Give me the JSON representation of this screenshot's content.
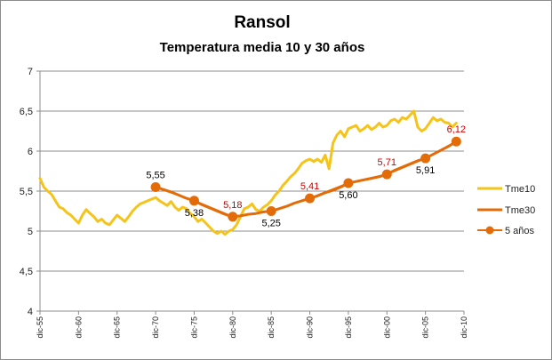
{
  "chart_data": {
    "type": "line",
    "title": "Ransol",
    "subtitle": "Temperatura media  10 y 30 años",
    "ylim": [
      4,
      7
    ],
    "yticks": [
      "4",
      "4,5",
      "5",
      "5,5",
      "6",
      "6,5",
      "7"
    ],
    "ytick_values": [
      4,
      4.5,
      5,
      5.5,
      6,
      6.5,
      7
    ],
    "x_range": [
      1955,
      2010
    ],
    "xticks": [
      "dic-55",
      "dic-60",
      "dic-65",
      "dic-70",
      "dic-75",
      "dic-80",
      "dic-85",
      "dic-90",
      "dic-95",
      "dic-00",
      "dic-05",
      "dic-10"
    ],
    "xtick_values": [
      1955,
      1960,
      1965,
      1970,
      1975,
      1980,
      1985,
      1990,
      1995,
      2000,
      2005,
      2010
    ],
    "grid": true,
    "legend_position": "right",
    "series": [
      {
        "name": "Tme10",
        "color": "#f5c41a",
        "x": [
          1955.0,
          1955.5,
          1956.0,
          1956.5,
          1957.0,
          1957.5,
          1958.0,
          1958.5,
          1959.0,
          1959.5,
          1960.0,
          1960.5,
          1961.0,
          1961.5,
          1962.0,
          1962.5,
          1963.0,
          1963.5,
          1964.0,
          1964.5,
          1965.0,
          1965.5,
          1966.0,
          1966.5,
          1967.0,
          1967.5,
          1968.0,
          1968.5,
          1969.0,
          1969.5,
          1970.0,
          1970.5,
          1971.0,
          1971.5,
          1972.0,
          1972.5,
          1973.0,
          1973.5,
          1974.0,
          1974.5,
          1975.0,
          1975.5,
          1976.0,
          1976.5,
          1977.0,
          1977.5,
          1978.0,
          1978.5,
          1979.0,
          1979.5,
          1980.0,
          1980.5,
          1981.0,
          1981.5,
          1982.0,
          1982.5,
          1983.0,
          1983.5,
          1984.0,
          1984.5,
          1985.0,
          1985.5,
          1986.0,
          1986.5,
          1987.0,
          1987.5,
          1988.0,
          1988.5,
          1989.0,
          1989.5,
          1990.0,
          1990.5,
          1991.0,
          1991.5,
          1992.0,
          1992.5,
          1993.0,
          1993.5,
          1994.0,
          1994.5,
          1995.0,
          1995.5,
          1996.0,
          1996.5,
          1997.0,
          1997.5,
          1998.0,
          1998.5,
          1999.0,
          1999.5,
          2000.0,
          2000.5,
          2001.0,
          2001.5,
          2002.0,
          2002.5,
          2003.0,
          2003.5,
          2004.0,
          2004.5,
          2005.0,
          2005.5,
          2006.0,
          2006.5,
          2007.0,
          2007.5,
          2008.0,
          2008.5,
          2009.0
        ],
        "values": [
          5.66,
          5.55,
          5.5,
          5.46,
          5.38,
          5.3,
          5.28,
          5.23,
          5.2,
          5.15,
          5.1,
          5.2,
          5.27,
          5.22,
          5.18,
          5.12,
          5.15,
          5.1,
          5.08,
          5.14,
          5.2,
          5.16,
          5.12,
          5.18,
          5.25,
          5.3,
          5.34,
          5.36,
          5.38,
          5.4,
          5.42,
          5.38,
          5.35,
          5.32,
          5.37,
          5.3,
          5.26,
          5.3,
          5.28,
          5.22,
          5.18,
          5.12,
          5.15,
          5.1,
          5.05,
          5.0,
          4.97,
          5.0,
          4.96,
          5.0,
          5.02,
          5.08,
          5.18,
          5.28,
          5.3,
          5.34,
          5.27,
          5.25,
          5.3,
          5.33,
          5.38,
          5.45,
          5.5,
          5.57,
          5.62,
          5.68,
          5.72,
          5.78,
          5.85,
          5.88,
          5.9,
          5.87,
          5.9,
          5.86,
          5.95,
          5.78,
          6.1,
          6.2,
          6.25,
          6.18,
          6.28,
          6.3,
          6.32,
          6.25,
          6.28,
          6.32,
          6.27,
          6.3,
          6.35,
          6.3,
          6.32,
          6.38,
          6.4,
          6.36,
          6.42,
          6.4,
          6.45,
          6.5,
          6.3,
          6.25,
          6.28,
          6.35,
          6.42,
          6.38,
          6.4,
          6.36,
          6.35,
          6.3,
          6.35
        ]
      },
      {
        "name": "Tme30",
        "color": "#e36c09",
        "x": [
          1970,
          1971,
          1972,
          1973,
          1974,
          1975,
          1976,
          1977,
          1978,
          1979,
          1980,
          1981,
          1982,
          1983,
          1984,
          1985,
          1986,
          1987,
          1988,
          1989,
          1990,
          1991,
          1992,
          1993,
          1994,
          1995,
          1996,
          1997,
          1998,
          1999,
          2000,
          2001,
          2002,
          2003,
          2004,
          2005,
          2006,
          2007,
          2008,
          2009
        ],
        "values": [
          5.55,
          5.52,
          5.49,
          5.45,
          5.41,
          5.38,
          5.33,
          5.29,
          5.25,
          5.21,
          5.18,
          5.19,
          5.21,
          5.22,
          5.24,
          5.25,
          5.28,
          5.31,
          5.35,
          5.38,
          5.41,
          5.44,
          5.48,
          5.51,
          5.55,
          5.6,
          5.62,
          5.64,
          5.66,
          5.68,
          5.71,
          5.76,
          5.8,
          5.84,
          5.88,
          5.91,
          5.96,
          6.01,
          6.06,
          6.12
        ]
      },
      {
        "name": "5 años",
        "color": "#e36c09",
        "x": [
          1970,
          1975,
          1980,
          1985,
          1990,
          1995,
          2000,
          2005,
          2009
        ],
        "values": [
          5.55,
          5.38,
          5.18,
          5.25,
          5.41,
          5.6,
          5.71,
          5.91,
          6.12
        ]
      }
    ],
    "annotations": [
      {
        "text": "5,55",
        "x": 1970,
        "value": 5.55,
        "color": "#000000",
        "placement": "above"
      },
      {
        "text": "5,38",
        "x": 1975,
        "value": 5.38,
        "color": "#000000",
        "placement": "below"
      },
      {
        "text": "5,18",
        "x": 1980,
        "value": 5.18,
        "color": "#cc0000",
        "placement": "above"
      },
      {
        "text": "5,25",
        "x": 1985,
        "value": 5.25,
        "color": "#000000",
        "placement": "below"
      },
      {
        "text": "5,41",
        "x": 1990,
        "value": 5.41,
        "color": "#cc0000",
        "placement": "above"
      },
      {
        "text": "5,60",
        "x": 1995,
        "value": 5.6,
        "color": "#000000",
        "placement": "below"
      },
      {
        "text": "5,71",
        "x": 2000,
        "value": 5.71,
        "color": "#cc0000",
        "placement": "above"
      },
      {
        "text": "5,91",
        "x": 2005,
        "value": 5.91,
        "color": "#000000",
        "placement": "below"
      },
      {
        "text": "6,12",
        "x": 2009,
        "value": 6.12,
        "color": "#cc0000",
        "placement": "above"
      }
    ]
  }
}
